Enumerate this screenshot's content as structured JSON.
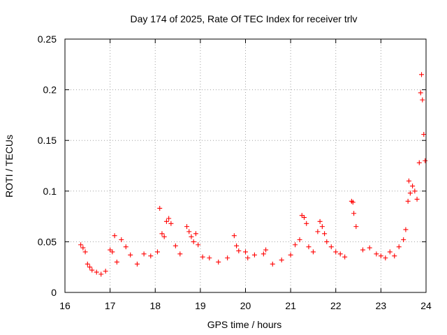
{
  "chart_data": {
    "type": "scatter",
    "title": "Day 174 of 2025, Rate Of TEC Index for receiver trlv",
    "xlabel": "GPS time / hours",
    "ylabel": "ROTI / TECUs",
    "xlim": [
      16,
      24
    ],
    "ylim": [
      0,
      0.25
    ],
    "x_ticks": [
      16,
      17,
      18,
      19,
      20,
      21,
      22,
      23,
      24
    ],
    "x_tick_labels": [
      "16",
      "17",
      "18",
      "19",
      "20",
      "21",
      "22",
      "23",
      "24"
    ],
    "y_ticks": [
      0,
      0.05,
      0.1,
      0.15,
      0.2,
      0.25
    ],
    "y_tick_labels": [
      "0",
      "0.05",
      "0.1",
      "0.15",
      "0.2",
      "0.25"
    ],
    "grid": true,
    "marker": "plus",
    "series_color": "#ff0000",
    "series": [
      {
        "name": "ROTI",
        "x": [
          16.35,
          16.4,
          16.45,
          16.5,
          16.55,
          16.6,
          16.7,
          16.8,
          16.9,
          17.0,
          17.05,
          17.1,
          17.15,
          17.25,
          17.35,
          17.45,
          17.6,
          17.75,
          17.9,
          18.05,
          18.1,
          18.15,
          18.2,
          18.25,
          18.3,
          18.35,
          18.45,
          18.55,
          18.7,
          18.75,
          18.8,
          18.85,
          18.9,
          18.95,
          19.05,
          19.2,
          19.4,
          19.6,
          19.75,
          19.8,
          19.85,
          20.0,
          20.05,
          20.2,
          20.4,
          20.45,
          20.6,
          20.8,
          21.0,
          21.1,
          21.2,
          21.25,
          21.3,
          21.35,
          21.4,
          21.5,
          21.6,
          21.65,
          21.7,
          21.75,
          21.8,
          21.9,
          22.0,
          22.1,
          22.2,
          22.35,
          22.38,
          22.4,
          22.45,
          22.6,
          22.75,
          22.9,
          23.0,
          23.1,
          23.2,
          23.3,
          23.4,
          23.5,
          23.55,
          23.6,
          23.62,
          23.65,
          23.7,
          23.75,
          23.8,
          23.85,
          23.88,
          23.9,
          23.92,
          23.95,
          23.98
        ],
        "y": [
          0.047,
          0.044,
          0.04,
          0.028,
          0.025,
          0.022,
          0.02,
          0.018,
          0.021,
          0.042,
          0.04,
          0.056,
          0.03,
          0.052,
          0.045,
          0.037,
          0.028,
          0.038,
          0.036,
          0.04,
          0.083,
          0.058,
          0.055,
          0.07,
          0.073,
          0.068,
          0.046,
          0.038,
          0.065,
          0.06,
          0.055,
          0.05,
          0.058,
          0.047,
          0.035,
          0.034,
          0.03,
          0.034,
          0.056,
          0.046,
          0.041,
          0.04,
          0.034,
          0.037,
          0.038,
          0.042,
          0.028,
          0.032,
          0.037,
          0.047,
          0.052,
          0.076,
          0.074,
          0.068,
          0.045,
          0.04,
          0.06,
          0.07,
          0.065,
          0.058,
          0.05,
          0.045,
          0.04,
          0.038,
          0.035,
          0.09,
          0.089,
          0.078,
          0.065,
          0.042,
          0.044,
          0.038,
          0.036,
          0.034,
          0.04,
          0.036,
          0.045,
          0.052,
          0.062,
          0.09,
          0.11,
          0.098,
          0.105,
          0.1,
          0.092,
          0.128,
          0.197,
          0.215,
          0.19,
          0.156,
          0.13
        ]
      }
    ]
  }
}
